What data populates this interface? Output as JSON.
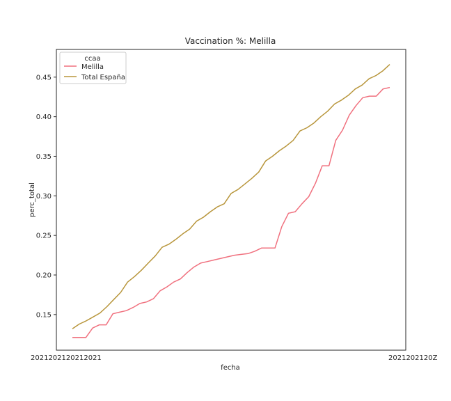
{
  "chart_data": {
    "type": "line",
    "title": "Vaccination %: Melilla",
    "xlabel": "fecha",
    "ylabel": "perc_total",
    "ylim": [
      0.105,
      0.485
    ],
    "yticks": [
      "0.15",
      "0.20",
      "0.25",
      "0.30",
      "0.35",
      "0.40",
      "0.45"
    ],
    "xtick_text_left": "2021202120212021",
    "xtick_text_right": "2021202120Z",
    "grid": false,
    "legend": {
      "title": "ccaa",
      "placement": "top-left",
      "entries": [
        "Melilla",
        "Total España"
      ]
    },
    "series": [
      {
        "name": "Melilla",
        "color": "#f0707e",
        "values": [
          0.121,
          0.121,
          0.121,
          0.133,
          0.137,
          0.137,
          0.151,
          0.153,
          0.155,
          0.159,
          0.164,
          0.166,
          0.17,
          0.18,
          0.185,
          0.191,
          0.195,
          0.203,
          0.21,
          0.215,
          0.217,
          0.219,
          0.221,
          0.223,
          0.225,
          0.226,
          0.227,
          0.23,
          0.234,
          0.234,
          0.234,
          0.261,
          0.278,
          0.28,
          0.29,
          0.299,
          0.316,
          0.338,
          0.338,
          0.37,
          0.383,
          0.402,
          0.414,
          0.424,
          0.426,
          0.426,
          0.435,
          0.437
        ]
      },
      {
        "name": "Total España",
        "color": "#b8963c",
        "values": [
          0.132,
          0.138,
          0.142,
          0.147,
          0.152,
          0.16,
          0.169,
          0.178,
          0.191,
          0.198,
          0.206,
          0.215,
          0.224,
          0.235,
          0.239,
          0.245,
          0.252,
          0.258,
          0.268,
          0.273,
          0.28,
          0.286,
          0.29,
          0.303,
          0.308,
          0.315,
          0.322,
          0.33,
          0.344,
          0.35,
          0.357,
          0.363,
          0.37,
          0.382,
          0.386,
          0.392,
          0.4,
          0.407,
          0.416,
          0.421,
          0.427,
          0.435,
          0.44,
          0.448,
          0.452,
          0.458,
          0.466
        ]
      }
    ]
  }
}
